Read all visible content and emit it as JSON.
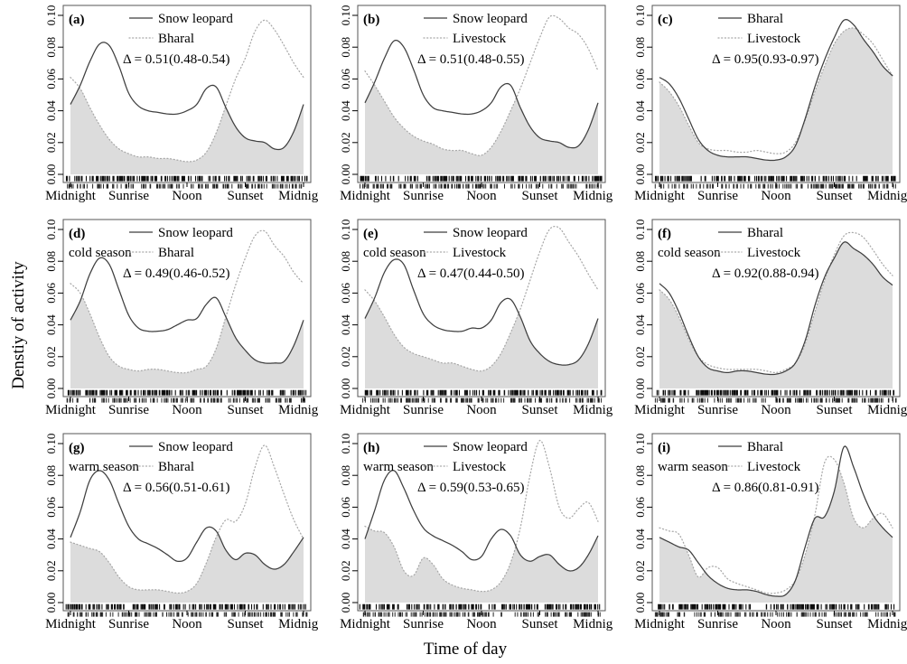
{
  "figure": {
    "y_axis_title": "Denstiy of activity",
    "x_axis_title": "Time of day",
    "y_ticks": [
      "0.00",
      "0.02",
      "0.04",
      "0.06",
      "0.08",
      "0.10"
    ],
    "x_tick_labels": [
      "Midnight",
      "Sunrise",
      "Noon",
      "Sunset",
      "Midnight"
    ],
    "x_tick_hours": [
      0,
      6,
      12,
      18,
      24
    ],
    "colors": {
      "solid_line": "#3f3f3f",
      "dotted_line": "#a8a8a8",
      "overlap_fill": "#dcdcdc",
      "rug": "#000000",
      "box_border": "#555555"
    }
  },
  "chart_data": [
    {
      "type": "area",
      "id": "a",
      "tag": "(a)",
      "season": "",
      "delta_label": "Δ = 0.51(0.48-0.54)",
      "x_hours": [
        0,
        1,
        2,
        3,
        4,
        5,
        6,
        7,
        8,
        9,
        10,
        11,
        12,
        13,
        14,
        15,
        16,
        17,
        18,
        19,
        20,
        21,
        22,
        23,
        24
      ],
      "xlim": [
        0,
        24
      ],
      "ylim": [
        0,
        0.1
      ],
      "fill_rule": "overlap-min",
      "series": [
        {
          "name": "Snow leopard",
          "style": "solid",
          "values": [
            0.044,
            0.056,
            0.071,
            0.082,
            0.081,
            0.068,
            0.051,
            0.043,
            0.04,
            0.039,
            0.038,
            0.038,
            0.04,
            0.044,
            0.054,
            0.055,
            0.042,
            0.03,
            0.023,
            0.021,
            0.02,
            0.016,
            0.017,
            0.027,
            0.044
          ]
        },
        {
          "name": "Bharal",
          "style": "dotted",
          "values": [
            0.061,
            0.054,
            0.042,
            0.031,
            0.022,
            0.016,
            0.013,
            0.011,
            0.011,
            0.01,
            0.01,
            0.009,
            0.008,
            0.009,
            0.014,
            0.026,
            0.043,
            0.06,
            0.073,
            0.09,
            0.097,
            0.091,
            0.081,
            0.07,
            0.061
          ]
        }
      ]
    },
    {
      "type": "area",
      "id": "b",
      "tag": "(b)",
      "season": "",
      "delta_label": "Δ = 0.51(0.48-0.55)",
      "x_hours": [
        0,
        1,
        2,
        3,
        4,
        5,
        6,
        7,
        8,
        9,
        10,
        11,
        12,
        13,
        14,
        15,
        16,
        17,
        18,
        19,
        20,
        21,
        22,
        23,
        24
      ],
      "xlim": [
        0,
        24
      ],
      "ylim": [
        0,
        0.1
      ],
      "fill_rule": "overlap-min",
      "series": [
        {
          "name": "Snow leopard",
          "style": "solid",
          "values": [
            0.045,
            0.058,
            0.073,
            0.084,
            0.08,
            0.066,
            0.05,
            0.042,
            0.04,
            0.039,
            0.038,
            0.038,
            0.04,
            0.045,
            0.055,
            0.056,
            0.042,
            0.03,
            0.023,
            0.021,
            0.02,
            0.017,
            0.018,
            0.028,
            0.045
          ]
        },
        {
          "name": "Livestock",
          "style": "dotted",
          "values": [
            0.065,
            0.056,
            0.046,
            0.036,
            0.029,
            0.024,
            0.021,
            0.019,
            0.016,
            0.015,
            0.015,
            0.013,
            0.012,
            0.017,
            0.027,
            0.04,
            0.054,
            0.07,
            0.086,
            0.099,
            0.098,
            0.092,
            0.088,
            0.079,
            0.065
          ]
        }
      ]
    },
    {
      "type": "area",
      "id": "c",
      "tag": "(c)",
      "season": "",
      "delta_label": "Δ = 0.95(0.93-0.97)",
      "x_hours": [
        0,
        1,
        2,
        3,
        4,
        5,
        6,
        7,
        8,
        9,
        10,
        11,
        12,
        13,
        14,
        15,
        16,
        17,
        18,
        19,
        20,
        21,
        22,
        23,
        24
      ],
      "xlim": [
        0,
        24
      ],
      "ylim": [
        0,
        0.1
      ],
      "fill_rule": "overlap-min",
      "series": [
        {
          "name": "Bharal",
          "style": "solid",
          "values": [
            0.061,
            0.057,
            0.048,
            0.035,
            0.022,
            0.015,
            0.012,
            0.011,
            0.011,
            0.011,
            0.01,
            0.009,
            0.009,
            0.011,
            0.018,
            0.035,
            0.055,
            0.072,
            0.086,
            0.097,
            0.094,
            0.085,
            0.077,
            0.068,
            0.062
          ]
        },
        {
          "name": "Livestock",
          "style": "dotted",
          "values": [
            0.058,
            0.052,
            0.043,
            0.031,
            0.02,
            0.016,
            0.015,
            0.015,
            0.014,
            0.014,
            0.015,
            0.014,
            0.013,
            0.014,
            0.02,
            0.034,
            0.052,
            0.068,
            0.082,
            0.09,
            0.092,
            0.088,
            0.082,
            0.072,
            0.062
          ]
        }
      ]
    },
    {
      "type": "area",
      "id": "d",
      "tag": "(d)",
      "season": "cold season",
      "delta_label": "Δ = 0.49(0.46-0.52)",
      "x_hours": [
        0,
        1,
        2,
        3,
        4,
        5,
        6,
        7,
        8,
        9,
        10,
        11,
        12,
        13,
        14,
        15,
        16,
        17,
        18,
        19,
        20,
        21,
        22,
        23,
        24
      ],
      "xlim": [
        0,
        24
      ],
      "ylim": [
        0,
        0.1
      ],
      "fill_rule": "overlap-min",
      "series": [
        {
          "name": "Snow leopard",
          "style": "solid",
          "values": [
            0.043,
            0.055,
            0.072,
            0.082,
            0.078,
            0.062,
            0.046,
            0.038,
            0.036,
            0.036,
            0.037,
            0.04,
            0.043,
            0.044,
            0.053,
            0.057,
            0.045,
            0.032,
            0.024,
            0.018,
            0.016,
            0.016,
            0.017,
            0.027,
            0.043
          ]
        },
        {
          "name": "Bharal",
          "style": "dotted",
          "values": [
            0.066,
            0.06,
            0.047,
            0.032,
            0.02,
            0.014,
            0.012,
            0.011,
            0.012,
            0.012,
            0.011,
            0.01,
            0.01,
            0.012,
            0.014,
            0.025,
            0.045,
            0.065,
            0.082,
            0.096,
            0.099,
            0.09,
            0.083,
            0.073,
            0.066
          ]
        }
      ]
    },
    {
      "type": "area",
      "id": "e",
      "tag": "(e)",
      "season": "cold season",
      "delta_label": "Δ = 0.47(0.44-0.50)",
      "x_hours": [
        0,
        1,
        2,
        3,
        4,
        5,
        6,
        7,
        8,
        9,
        10,
        11,
        12,
        13,
        14,
        15,
        16,
        17,
        18,
        19,
        20,
        21,
        22,
        23,
        24
      ],
      "xlim": [
        0,
        24
      ],
      "ylim": [
        0,
        0.1
      ],
      "fill_rule": "overlap-min",
      "series": [
        {
          "name": "Snow leopard",
          "style": "solid",
          "values": [
            0.044,
            0.057,
            0.073,
            0.081,
            0.078,
            0.062,
            0.047,
            0.04,
            0.037,
            0.036,
            0.036,
            0.038,
            0.038,
            0.043,
            0.054,
            0.056,
            0.045,
            0.03,
            0.022,
            0.017,
            0.015,
            0.015,
            0.018,
            0.028,
            0.044
          ]
        },
        {
          "name": "Livestock",
          "style": "dotted",
          "values": [
            0.062,
            0.055,
            0.045,
            0.034,
            0.026,
            0.022,
            0.02,
            0.018,
            0.016,
            0.016,
            0.014,
            0.012,
            0.011,
            0.014,
            0.022,
            0.035,
            0.05,
            0.068,
            0.086,
            0.1,
            0.101,
            0.092,
            0.083,
            0.072,
            0.062
          ]
        }
      ]
    },
    {
      "type": "area",
      "id": "f",
      "tag": "(f)",
      "season": "cold season",
      "delta_label": "Δ = 0.92(0.88-0.94)",
      "x_hours": [
        0,
        1,
        2,
        3,
        4,
        5,
        6,
        7,
        8,
        9,
        10,
        11,
        12,
        13,
        14,
        15,
        16,
        17,
        18,
        19,
        20,
        21,
        22,
        23,
        24
      ],
      "xlim": [
        0,
        24
      ],
      "ylim": [
        0,
        0.1
      ],
      "fill_rule": "overlap-min",
      "series": [
        {
          "name": "Bharal",
          "style": "solid",
          "values": [
            0.066,
            0.06,
            0.048,
            0.033,
            0.02,
            0.013,
            0.011,
            0.01,
            0.011,
            0.011,
            0.01,
            0.009,
            0.009,
            0.011,
            0.016,
            0.03,
            0.052,
            0.07,
            0.082,
            0.092,
            0.088,
            0.084,
            0.078,
            0.07,
            0.065
          ]
        },
        {
          "name": "Livestock",
          "style": "dotted",
          "values": [
            0.062,
            0.056,
            0.045,
            0.031,
            0.02,
            0.015,
            0.013,
            0.012,
            0.012,
            0.012,
            0.012,
            0.011,
            0.01,
            0.012,
            0.016,
            0.028,
            0.048,
            0.068,
            0.084,
            0.096,
            0.098,
            0.095,
            0.087,
            0.078,
            0.071
          ]
        }
      ]
    },
    {
      "type": "area",
      "id": "g",
      "tag": "(g)",
      "season": "warm season",
      "delta_label": "Δ = 0.56(0.51-0.61)",
      "x_hours": [
        0,
        1,
        2,
        3,
        4,
        5,
        6,
        7,
        8,
        9,
        10,
        11,
        12,
        13,
        14,
        15,
        16,
        17,
        18,
        19,
        20,
        21,
        22,
        23,
        24
      ],
      "xlim": [
        0,
        24
      ],
      "ylim": [
        0,
        0.1
      ],
      "fill_rule": "overlap-min",
      "series": [
        {
          "name": "Snow leopard",
          "style": "solid",
          "values": [
            0.041,
            0.057,
            0.077,
            0.083,
            0.077,
            0.062,
            0.048,
            0.04,
            0.037,
            0.034,
            0.03,
            0.026,
            0.028,
            0.038,
            0.047,
            0.045,
            0.033,
            0.027,
            0.031,
            0.03,
            0.024,
            0.021,
            0.024,
            0.032,
            0.041
          ]
        },
        {
          "name": "Bharal",
          "style": "dotted",
          "values": [
            0.038,
            0.036,
            0.034,
            0.032,
            0.025,
            0.016,
            0.01,
            0.008,
            0.008,
            0.008,
            0.007,
            0.006,
            0.007,
            0.012,
            0.025,
            0.041,
            0.052,
            0.051,
            0.062,
            0.085,
            0.099,
            0.085,
            0.068,
            0.052,
            0.04
          ]
        }
      ]
    },
    {
      "type": "area",
      "id": "h",
      "tag": "(h)",
      "season": "warm season",
      "delta_label": "Δ = 0.59(0.53-0.65)",
      "x_hours": [
        0,
        1,
        2,
        3,
        4,
        5,
        6,
        7,
        8,
        9,
        10,
        11,
        12,
        13,
        14,
        15,
        16,
        17,
        18,
        19,
        20,
        21,
        22,
        23,
        24
      ],
      "xlim": [
        0,
        24
      ],
      "ylim": [
        0,
        0.1
      ],
      "fill_rule": "overlap-min",
      "series": [
        {
          "name": "Snow leopard",
          "style": "solid",
          "values": [
            0.04,
            0.058,
            0.077,
            0.083,
            0.072,
            0.058,
            0.047,
            0.042,
            0.039,
            0.036,
            0.032,
            0.027,
            0.029,
            0.04,
            0.046,
            0.042,
            0.03,
            0.026,
            0.029,
            0.03,
            0.024,
            0.02,
            0.022,
            0.03,
            0.042
          ]
        },
        {
          "name": "Livestock",
          "style": "dotted",
          "values": [
            0.048,
            0.045,
            0.044,
            0.035,
            0.02,
            0.017,
            0.028,
            0.024,
            0.015,
            0.011,
            0.009,
            0.008,
            0.007,
            0.008,
            0.013,
            0.025,
            0.047,
            0.08,
            0.102,
            0.085,
            0.06,
            0.053,
            0.059,
            0.063,
            0.051
          ]
        }
      ]
    },
    {
      "type": "area",
      "id": "i",
      "tag": "(i)",
      "season": "warm season",
      "delta_label": "Δ = 0.86(0.81-0.91)",
      "x_hours": [
        0,
        1,
        2,
        3,
        4,
        5,
        6,
        7,
        8,
        9,
        10,
        11,
        12,
        13,
        14,
        15,
        16,
        17,
        18,
        19,
        20,
        21,
        22,
        23,
        24
      ],
      "xlim": [
        0,
        24
      ],
      "ylim": [
        0,
        0.1
      ],
      "fill_rule": "overlap-min",
      "series": [
        {
          "name": "Bharal",
          "style": "solid",
          "values": [
            0.041,
            0.038,
            0.035,
            0.033,
            0.025,
            0.017,
            0.012,
            0.009,
            0.008,
            0.008,
            0.007,
            0.005,
            0.004,
            0.005,
            0.014,
            0.035,
            0.053,
            0.054,
            0.07,
            0.098,
            0.085,
            0.068,
            0.055,
            0.047,
            0.041
          ]
        },
        {
          "name": "Livestock",
          "style": "dotted",
          "values": [
            0.047,
            0.045,
            0.043,
            0.03,
            0.016,
            0.022,
            0.022,
            0.015,
            0.012,
            0.01,
            0.008,
            0.006,
            0.006,
            0.008,
            0.014,
            0.03,
            0.055,
            0.088,
            0.09,
            0.075,
            0.053,
            0.047,
            0.053,
            0.056,
            0.047
          ]
        }
      ]
    }
  ]
}
